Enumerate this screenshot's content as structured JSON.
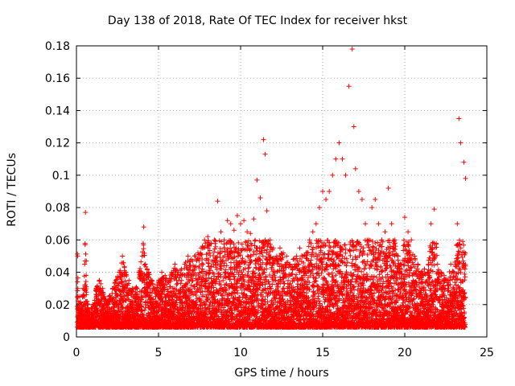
{
  "chart_data": {
    "type": "scatter",
    "title": "Day 138 of 2018, Rate Of TEC Index for receiver hkst",
    "xlabel": "GPS time / hours",
    "ylabel": "ROTI / TECUs",
    "xlim": [
      0,
      25
    ],
    "ylim": [
      0,
      0.18
    ],
    "xticks": [
      "0",
      "5",
      "10",
      "15",
      "20",
      "25"
    ],
    "yticks": [
      "0",
      "0.02",
      "0.04",
      "0.06",
      "0.08",
      "0.1",
      "0.12",
      "0.14",
      "0.16",
      "0.18"
    ],
    "grid": true,
    "marker": "+",
    "color": "#ff0000",
    "series": [
      {
        "name": "ROTI",
        "x": [
          0.1,
          0.2,
          0.3,
          0.4,
          0.5,
          0.55,
          0.6,
          0.65,
          0.7,
          0.8,
          0.9,
          1.0,
          1.2,
          1.4,
          1.6,
          1.7,
          1.8,
          2.0,
          2.2,
          2.4,
          2.6,
          2.8,
          3.0,
          3.2,
          3.4,
          3.6,
          3.8,
          4.0,
          4.1,
          4.2,
          4.4,
          4.6,
          4.8,
          5.0,
          5.2,
          5.4,
          5.6,
          5.8,
          6.0,
          6.2,
          6.4,
          6.6,
          6.8,
          7.0,
          7.2,
          7.4,
          7.6,
          7.8,
          8.0,
          8.2,
          8.4,
          8.6,
          8.8,
          9.0,
          9.2,
          9.4,
          9.6,
          9.8,
          10.0,
          10.2,
          10.4,
          10.6,
          10.8,
          11.0,
          11.2,
          11.4,
          11.5,
          11.6,
          11.8,
          12.0,
          12.2,
          12.4,
          12.6,
          12.8,
          13.0,
          13.2,
          13.4,
          13.6,
          13.8,
          14.0,
          14.2,
          14.4,
          14.6,
          14.8,
          15.0,
          15.2,
          15.4,
          15.6,
          15.8,
          16.0,
          16.2,
          16.4,
          16.6,
          16.8,
          16.9,
          17.0,
          17.2,
          17.4,
          17.6,
          17.8,
          18.0,
          18.2,
          18.4,
          18.6,
          18.8,
          19.0,
          19.2,
          19.4,
          19.6,
          19.8,
          20.0,
          20.2,
          20.4,
          20.6,
          20.8,
          21.0,
          21.2,
          21.4,
          21.6,
          21.8,
          22.0,
          22.2,
          22.4,
          22.6,
          22.8,
          23.0,
          23.2,
          23.3,
          23.4,
          23.6,
          23.7
        ],
        "y": [
          0.018,
          0.025,
          0.02,
          0.03,
          0.045,
          0.077,
          0.047,
          0.022,
          0.02,
          0.015,
          0.018,
          0.02,
          0.03,
          0.035,
          0.03,
          0.025,
          0.022,
          0.025,
          0.03,
          0.035,
          0.04,
          0.05,
          0.04,
          0.035,
          0.03,
          0.03,
          0.04,
          0.05,
          0.068,
          0.045,
          0.04,
          0.035,
          0.03,
          0.035,
          0.04,
          0.038,
          0.035,
          0.04,
          0.045,
          0.04,
          0.042,
          0.045,
          0.05,
          0.048,
          0.05,
          0.052,
          0.055,
          0.06,
          0.062,
          0.058,
          0.06,
          0.084,
          0.065,
          0.06,
          0.072,
          0.07,
          0.066,
          0.075,
          0.07,
          0.072,
          0.065,
          0.064,
          0.073,
          0.097,
          0.086,
          0.122,
          0.113,
          0.078,
          0.06,
          0.055,
          0.05,
          0.055,
          0.052,
          0.05,
          0.045,
          0.048,
          0.05,
          0.055,
          0.05,
          0.052,
          0.06,
          0.065,
          0.07,
          0.08,
          0.09,
          0.085,
          0.09,
          0.1,
          0.11,
          0.12,
          0.11,
          0.1,
          0.155,
          0.178,
          0.13,
          0.104,
          0.09,
          0.085,
          0.07,
          0.06,
          0.08,
          0.085,
          0.07,
          0.06,
          0.065,
          0.092,
          0.07,
          0.06,
          0.05,
          0.045,
          0.074,
          0.065,
          0.06,
          0.05,
          0.045,
          0.04,
          0.042,
          0.04,
          0.07,
          0.079,
          0.045,
          0.04,
          0.038,
          0.035,
          0.045,
          0.04,
          0.07,
          0.135,
          0.12,
          0.108,
          0.098
        ]
      }
    ]
  }
}
